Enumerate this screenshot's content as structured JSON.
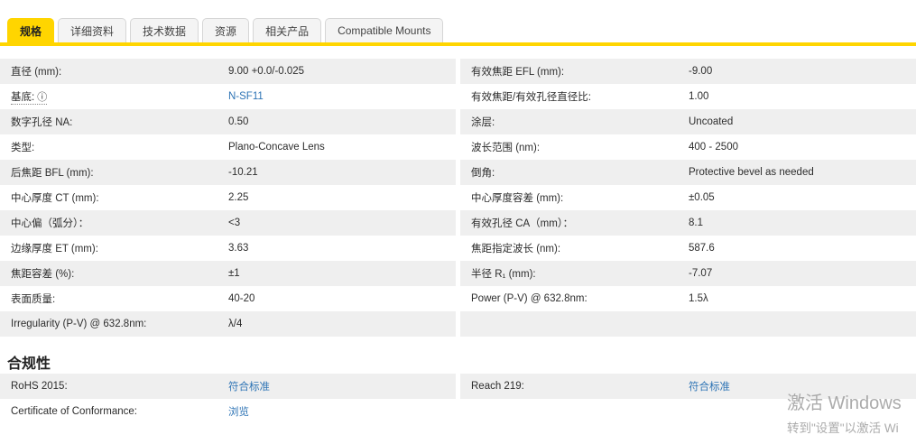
{
  "tabs": [
    {
      "label": "规格",
      "active": true
    },
    {
      "label": "详细资料",
      "active": false
    },
    {
      "label": "技术数据",
      "active": false
    },
    {
      "label": "资源",
      "active": false
    },
    {
      "label": "相关产品",
      "active": false
    },
    {
      "label": "Compatible Mounts",
      "active": false
    }
  ],
  "spec_table": {
    "left": [
      {
        "label": "直径 (mm):",
        "value": "9.00 +0.0/-0.025"
      },
      {
        "label": "基底:",
        "value": "N-SF11",
        "info_icon": "ⓘ",
        "value_is_link": true
      },
      {
        "label": "数字孔径 NA:",
        "value": "0.50"
      },
      {
        "label": "类型:",
        "value": "Plano-Concave Lens"
      },
      {
        "label": "后焦距 BFL (mm):",
        "value": "-10.21"
      },
      {
        "label": "中心厚度 CT (mm):",
        "value": "2.25"
      },
      {
        "label": "中心偏（弧分）：",
        "value": "<3"
      },
      {
        "label": "边缘厚度 ET (mm):",
        "value": "3.63"
      },
      {
        "label": "焦距容差 (%):",
        "value": "±1"
      },
      {
        "label": "表面质量:",
        "value": "40-20"
      },
      {
        "label": "Irregularity (P-V) @ 632.8nm:",
        "value": "λ/4"
      }
    ],
    "right": [
      {
        "label": "有效焦距 EFL (mm):",
        "value": "-9.00"
      },
      {
        "label": "有效焦距/有效孔径直径比:",
        "value": "1.00"
      },
      {
        "label": "涂层:",
        "value": "Uncoated"
      },
      {
        "label": "波长范围 (nm):",
        "value": "400 - 2500"
      },
      {
        "label": "倒角:",
        "value": "Protective bevel as needed"
      },
      {
        "label": "中心厚度容差 (mm):",
        "value": "±0.05"
      },
      {
        "label": "有效孔径 CA（mm）：",
        "value": "8.1"
      },
      {
        "label": "焦距指定波长 (nm):",
        "value": "587.6"
      },
      {
        "label": "半径 R₁ (mm):",
        "value": "-7.07"
      },
      {
        "label": "Power (P-V) @ 632.8nm:",
        "value": "1.5λ"
      },
      {
        "label": "",
        "value": ""
      }
    ]
  },
  "compliance": {
    "heading": "合规性",
    "left": [
      {
        "label": "RoHS 2015:",
        "value": "符合标准",
        "value_is_link": true
      },
      {
        "label": "Certificate of Conformance:",
        "value": "浏览",
        "value_is_link": true
      }
    ],
    "right": [
      {
        "label": "Reach 219:",
        "value": "符合标准",
        "value_is_link": true
      },
      {
        "label": "",
        "value": ""
      }
    ]
  },
  "watermark": {
    "line1": "激活 Windows",
    "line2": "转到\"设置\"以激活 Wi"
  },
  "colors": {
    "accent_yellow": "#ffd500",
    "row_gray": "#efefef",
    "link_blue": "#2e74b5",
    "watermark_gray": "#9d9d9d"
  }
}
